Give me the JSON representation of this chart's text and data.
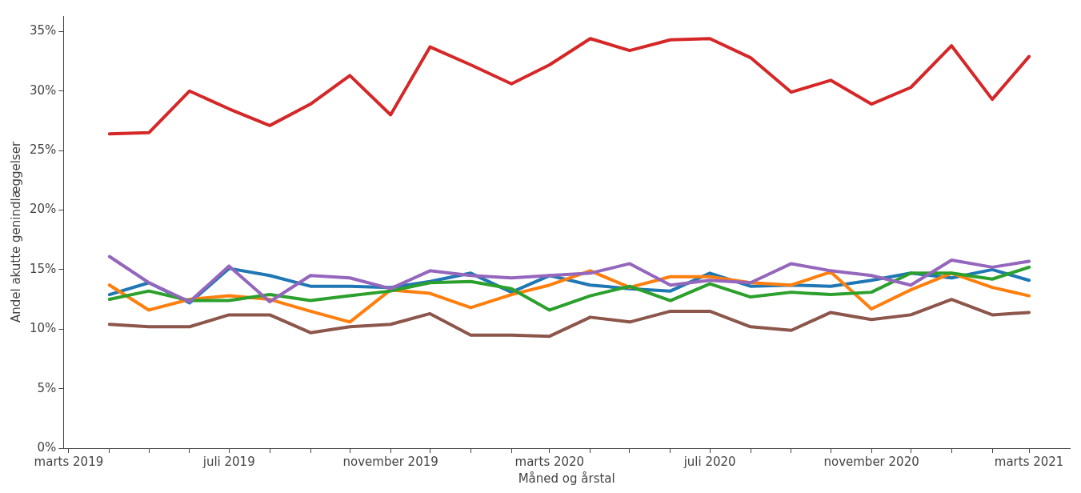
{
  "chart_data": {
    "type": "line",
    "xlabel": "Måned og årstal",
    "ylabel": "Andel akutte genindlæggelser",
    "x": [
      "2019-04",
      "2019-05",
      "2019-06",
      "2019-07",
      "2019-08",
      "2019-09",
      "2019-10",
      "2019-11",
      "2019-12",
      "2020-01",
      "2020-02",
      "2020-03",
      "2020-04",
      "2020-05",
      "2020-06",
      "2020-07",
      "2020-08",
      "2020-09",
      "2020-10",
      "2020-11",
      "2020-12",
      "2021-01",
      "2021-02",
      "2021-03"
    ],
    "series": [
      {
        "color": "#1f77b4",
        "values": [
          12.9,
          13.9,
          12.2,
          15.1,
          14.5,
          13.6,
          13.6,
          13.5,
          14.0,
          14.7,
          13.1,
          14.5,
          13.7,
          13.4,
          13.2,
          14.7,
          13.6,
          13.7,
          13.6,
          14.1,
          14.7,
          14.3,
          15.0,
          14.1
        ]
      },
      {
        "color": "#ff7f0e",
        "values": [
          13.7,
          11.6,
          12.5,
          12.8,
          12.5,
          11.5,
          10.6,
          13.3,
          13.0,
          11.8,
          12.9,
          13.7,
          14.9,
          13.5,
          14.4,
          14.4,
          13.9,
          13.7,
          14.8,
          11.7,
          13.3,
          14.7,
          13.5,
          12.8
        ]
      },
      {
        "color": "#2ca02c",
        "values": [
          12.5,
          13.2,
          12.4,
          12.4,
          12.9,
          12.4,
          12.8,
          13.2,
          13.9,
          14.0,
          13.4,
          11.6,
          12.8,
          13.6,
          12.4,
          13.8,
          12.7,
          13.1,
          12.9,
          13.1,
          14.7,
          14.7,
          14.2,
          15.2
        ]
      },
      {
        "color": "#d62728",
        "values": [
          26.4,
          26.5,
          30.0,
          28.5,
          27.1,
          28.9,
          31.3,
          28.0,
          33.7,
          32.2,
          30.6,
          32.2,
          34.4,
          33.4,
          34.3,
          34.4,
          32.8,
          29.9,
          30.9,
          28.9,
          30.3,
          33.8,
          29.3,
          32.9
        ]
      },
      {
        "color": "#9467bd",
        "values": [
          16.1,
          13.9,
          12.3,
          15.3,
          12.3,
          14.5,
          14.3,
          13.4,
          14.9,
          14.5,
          14.3,
          14.5,
          14.7,
          15.5,
          13.7,
          14.1,
          13.9,
          15.5,
          14.9,
          14.5,
          13.7,
          15.8,
          15.2,
          15.7
        ]
      },
      {
        "color": "#8c564b",
        "values": [
          10.4,
          10.2,
          10.2,
          11.2,
          11.2,
          9.7,
          10.2,
          10.4,
          11.3,
          9.5,
          9.5,
          9.4,
          11.0,
          10.6,
          11.5,
          11.5,
          10.2,
          9.9,
          11.4,
          10.8,
          11.2,
          12.5,
          11.2,
          11.4
        ]
      }
    ],
    "xlim": [
      "2019-02-25",
      "2021-04-01"
    ],
    "xticks": [
      {
        "value": "2019-03",
        "label": "marts 2019"
      },
      {
        "value": "2019-04",
        "label": null
      },
      {
        "value": "2019-05",
        "label": null
      },
      {
        "value": "2019-06",
        "label": null
      },
      {
        "value": "2019-07",
        "label": "juli 2019"
      },
      {
        "value": "2019-08",
        "label": null
      },
      {
        "value": "2019-09",
        "label": null
      },
      {
        "value": "2019-10",
        "label": null
      },
      {
        "value": "2019-11",
        "label": "november 2019"
      },
      {
        "value": "2019-12",
        "label": null
      },
      {
        "value": "2020-01",
        "label": null
      },
      {
        "value": "2020-02",
        "label": null
      },
      {
        "value": "2020-03",
        "label": "marts 2020"
      },
      {
        "value": "2020-04",
        "label": null
      },
      {
        "value": "2020-05",
        "label": null
      },
      {
        "value": "2020-06",
        "label": null
      },
      {
        "value": "2020-07",
        "label": "juli 2020"
      },
      {
        "value": "2020-08",
        "label": null
      },
      {
        "value": "2020-09",
        "label": null
      },
      {
        "value": "2020-10",
        "label": null
      },
      {
        "value": "2020-11",
        "label": "november 2020"
      },
      {
        "value": "2020-12",
        "label": null
      },
      {
        "value": "2021-01",
        "label": null
      },
      {
        "value": "2021-02",
        "label": null
      },
      {
        "value": "2021-03",
        "label": "marts 2021"
      }
    ],
    "ylim": [
      0,
      36.3
    ],
    "yticks": [
      {
        "value": 0,
        "label": "0%"
      },
      {
        "value": 5,
        "label": "5%"
      },
      {
        "value": 10,
        "label": "10%"
      },
      {
        "value": 15,
        "label": "15%"
      },
      {
        "value": 20,
        "label": "20%"
      },
      {
        "value": 25,
        "label": "25%"
      },
      {
        "value": 30,
        "label": "30%"
      },
      {
        "value": 35,
        "label": "35%"
      }
    ],
    "grid": false,
    "legend": false,
    "marker": "none",
    "line_style": "solid"
  }
}
